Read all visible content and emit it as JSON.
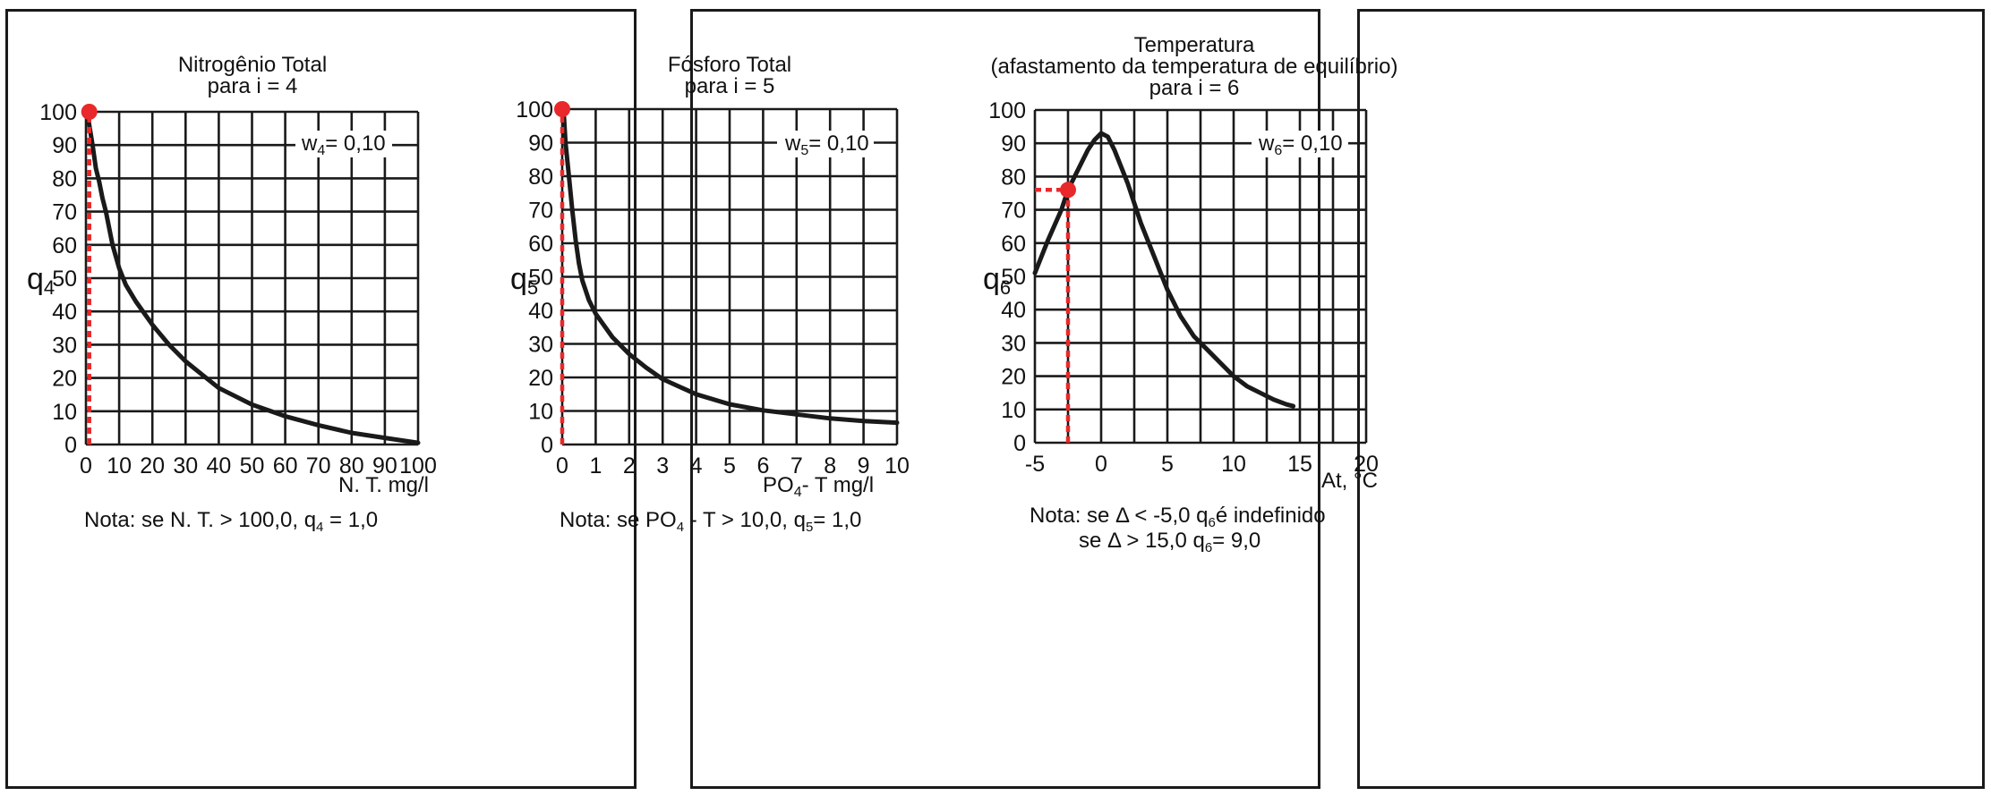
{
  "chart_data": [
    {
      "type": "line",
      "title": "Nitrogênio Total",
      "subtitle": "para i = 4",
      "ylabel": "q",
      "ylabel_sub": "4",
      "xlabel": "N. T.  mg/l",
      "weight_label": "w",
      "weight_sub": "4",
      "weight_value": "= 0,10",
      "note": "Nota: se N. T. > 100,0,  q",
      "note_sub": "4",
      "note_tail": " = 1,0",
      "xlim": [
        0,
        100
      ],
      "ylim": [
        0,
        100
      ],
      "x_ticks": [
        "0",
        "10",
        "20",
        "30",
        "40",
        "50",
        "60",
        "70",
        "80",
        "90",
        "100"
      ],
      "y_ticks": [
        "0",
        "10",
        "20",
        "30",
        "40",
        "50",
        "60",
        "70",
        "80",
        "90",
        "100"
      ],
      "x_grid": [
        0,
        10,
        20,
        30,
        40,
        50,
        60,
        70,
        80,
        90,
        100
      ],
      "y_grid": [
        0,
        10,
        20,
        30,
        40,
        50,
        60,
        70,
        80,
        90,
        100
      ],
      "grid": true,
      "x": [
        0.5,
        1,
        2,
        3,
        4,
        5,
        6,
        7,
        8,
        10,
        12,
        15,
        20,
        25,
        30,
        35,
        40,
        50,
        60,
        70,
        80,
        90,
        100
      ],
      "y": [
        99,
        96,
        90,
        83,
        79,
        74,
        70,
        65,
        60,
        53,
        48,
        43,
        36,
        30,
        25,
        21,
        17,
        12,
        8.5,
        5.8,
        3.5,
        2,
        0.5
      ],
      "marker": {
        "x": 1,
        "y": 100
      },
      "marker_color": "#e8282a"
    },
    {
      "type": "line",
      "title": "Fósforo Total",
      "subtitle": "para i = 5",
      "ylabel": "q",
      "ylabel_sub": "5",
      "xlabel": "PO",
      "xlabel_sub": "4",
      "xlabel_tail": "- T  mg/l",
      "weight_label": "w",
      "weight_sub": "5",
      "weight_value": "= 0,10",
      "note": "Nota: se PO",
      "note_sub": "4",
      "note_tail": " - T > 10,0,  q",
      "note_sub2": "5",
      "note_tail2": "= 1,0",
      "xlim": [
        0,
        10
      ],
      "ylim": [
        0,
        100
      ],
      "x_ticks": [
        "0",
        "1",
        "2",
        "3",
        "4",
        "5",
        "6",
        "7",
        "8",
        "9",
        "10"
      ],
      "y_ticks": [
        "0",
        "10",
        "20",
        "30",
        "40",
        "50",
        "60",
        "70",
        "80",
        "90",
        "100"
      ],
      "x_grid": [
        0,
        1,
        2,
        3,
        4,
        5,
        6,
        7,
        8,
        9,
        10
      ],
      "y_grid": [
        0,
        10,
        20,
        30,
        40,
        50,
        60,
        70,
        80,
        90,
        100
      ],
      "grid": true,
      "x": [
        0.05,
        0.1,
        0.2,
        0.3,
        0.4,
        0.5,
        0.6,
        0.8,
        1,
        1.5,
        2,
        2.5,
        3,
        4,
        5,
        6,
        7,
        8,
        9,
        10
      ],
      "y": [
        98,
        90,
        80,
        70,
        61,
        54,
        49,
        43,
        39,
        32,
        27,
        23,
        19.5,
        15,
        12,
        10.2,
        9,
        7.8,
        7,
        6.5
      ],
      "marker": {
        "x": 0,
        "y": 100
      },
      "marker_color": "#e8282a"
    },
    {
      "type": "line",
      "title": "Temperatura",
      "subtitle": "(afastamento da temperatura de equilíbrio)",
      "subtitle2": "para i = 6",
      "ylabel": "q",
      "ylabel_sub": "6",
      "xlabel": "At, °C",
      "weight_label": "w",
      "weight_sub": "6",
      "weight_value": "= 0,10",
      "note_line1_a": "Nota: se ",
      "note_line1_b": "Δ <  -5,0    q",
      "note_line1_sub": "6",
      "note_line1_c": "é indefinido",
      "note_line2_a": "se ",
      "note_line2_b": "Δ >  15,0    q",
      "note_line2_sub": "6",
      "note_line2_c": "= 9,0",
      "xlim": [
        -5,
        20
      ],
      "ylim": [
        0,
        100
      ],
      "x_ticks": [
        "-5",
        "0",
        "5",
        "10",
        "15",
        "20"
      ],
      "y_ticks": [
        "0",
        "10",
        "20",
        "30",
        "40",
        "50",
        "60",
        "70",
        "80",
        "90",
        "100"
      ],
      "x_grid": [
        -5,
        -2.5,
        0,
        2.5,
        5,
        7.5,
        10,
        12.5,
        15,
        17.5,
        20
      ],
      "y_grid": [
        0,
        10,
        20,
        30,
        40,
        50,
        60,
        70,
        80,
        90,
        100
      ],
      "grid": true,
      "x": [
        -5,
        -4,
        -3,
        -2.5,
        -2,
        -1,
        -0.5,
        0,
        0.5,
        1,
        2,
        3,
        4,
        5,
        6,
        7,
        8,
        9,
        10,
        11,
        12,
        13,
        14,
        14.5
      ],
      "y": [
        51,
        61,
        70,
        76,
        80,
        88,
        91,
        93,
        92,
        88,
        78,
        66,
        56,
        46,
        38,
        32,
        28,
        24,
        20,
        17,
        15,
        13,
        11.5,
        11
      ],
      "marker": {
        "x": -2.5,
        "y": 76
      },
      "marker_color": "#e8282a"
    }
  ]
}
